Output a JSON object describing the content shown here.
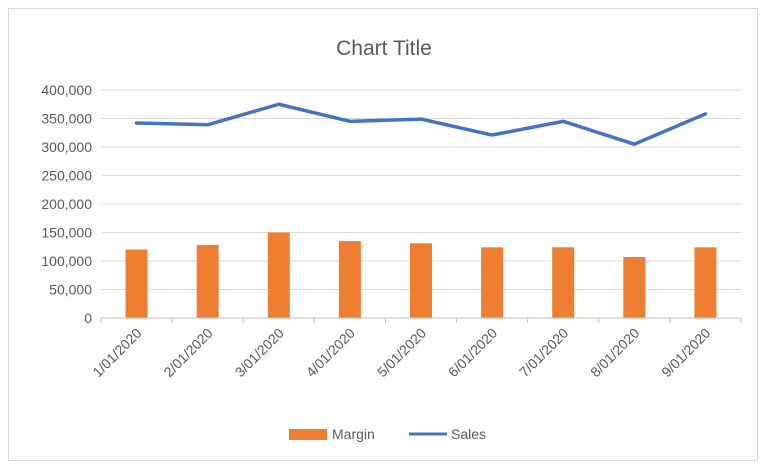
{
  "chart_data": {
    "type": "bar",
    "title": "Chart Title",
    "xlabel": "",
    "ylabel": "",
    "ylim": [
      0,
      400000
    ],
    "yticks": [
      "0",
      "50,000",
      "100,000",
      "150,000",
      "200,000",
      "250,000",
      "300,000",
      "350,000",
      "400,000"
    ],
    "categories": [
      "1/01/2020",
      "2/01/2020",
      "3/01/2020",
      "4/01/2020",
      "5/01/2020",
      "6/01/2020",
      "7/01/2020",
      "8/01/2020",
      "9/01/2020"
    ],
    "grid": true,
    "legend": "bottom",
    "series": [
      {
        "name": "Margin",
        "type": "bar",
        "color": "#ed7d31",
        "values": [
          120000,
          128000,
          150000,
          135000,
          131000,
          124000,
          124000,
          107000,
          124000
        ]
      },
      {
        "name": "Sales",
        "type": "line",
        "color": "#4472c4",
        "values": [
          342000,
          339000,
          375000,
          345000,
          349000,
          321000,
          345000,
          305000,
          358000
        ]
      }
    ]
  }
}
